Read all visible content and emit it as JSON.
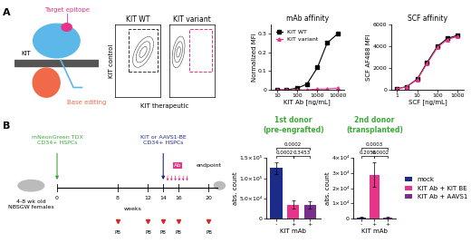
{
  "panel_labels": [
    "A",
    "B"
  ],
  "schematic": {
    "protein": "KIT",
    "epitope": "Target epitope",
    "editing": "Base editing"
  },
  "flow": {
    "xlabel": "KIT therapeutic",
    "ylabel": "KIT control",
    "plots": [
      "KIT WT",
      "KIT variant"
    ]
  },
  "timeline": {
    "start_label": "mNeonGreen TDX\nCD34+ HSPCs",
    "mice": "4-8 wk old\nNBSGW females",
    "axis_label": "weeks",
    "weeks": [
      0,
      8,
      12,
      14,
      16,
      20
    ],
    "start_week": 0,
    "graft_label": "KIT or AAVS1-BE\nCD34+ HSPCs",
    "graft_week": 14,
    "ab_label": "Ab",
    "sample_label": "PB",
    "sample_weeks": [
      8,
      12,
      14,
      16,
      20
    ],
    "end_label": "endpoint"
  },
  "chart_data": [
    {
      "type": "line",
      "title": "mAb affinity",
      "xlabel": "KIT Ab [ng/mL]",
      "ylabel": "Normalized MFI",
      "log": "x",
      "x": [
        10,
        30,
        100,
        300,
        1000,
        3000,
        10000
      ],
      "series": [
        {
          "name": "KIT WT",
          "color": "#000000",
          "marker": "square",
          "line_style": "solid",
          "values": [
            0.0,
            0.0,
            0.01,
            0.03,
            0.12,
            0.25,
            0.3
          ]
        },
        {
          "name": "KIT variant",
          "color": "#e8338a",
          "marker": "triangle",
          "line_style": "solid",
          "values": [
            0.0,
            0.0,
            0.0,
            0.0,
            0.005,
            0.005,
            0.01
          ]
        }
      ],
      "xlim": [
        5,
        20000
      ],
      "xticks": [
        10,
        100,
        1000,
        10000
      ],
      "ylim": [
        0,
        0.35
      ],
      "yticks": [
        0,
        0.1,
        0.2,
        0.3
      ],
      "legend": "upper left"
    },
    {
      "type": "line",
      "title": "SCF affinity",
      "xlabel": "SCF [ng/mL]",
      "ylabel": "SCF AF488 MFI",
      "log": "x",
      "x": [
        1,
        3,
        10,
        30,
        100,
        300,
        1000
      ],
      "series": [
        {
          "color": "#000000",
          "marker": "square",
          "line_style": "solid",
          "values": [
            100,
            300,
            1000,
            2500,
            4000,
            4700,
            5000
          ]
        },
        {
          "color": "#e8338a",
          "marker": "triangle",
          "line_style": "solid",
          "values": [
            100,
            280,
            950,
            2400,
            3900,
            4600,
            4900
          ]
        }
      ],
      "xlim": [
        0.5,
        2000
      ],
      "xticks": [
        1,
        10,
        100,
        1000
      ],
      "ylim": [
        0,
        6000
      ],
      "yticks": [
        0,
        2000,
        4000,
        6000
      ]
    },
    {
      "type": "bar",
      "title": "1st donor\n(pre-engrafted)",
      "ylabel": "abs. count",
      "xlabel": "KIT mAb",
      "categories": [
        "-",
        "+",
        "+"
      ],
      "values": [
        125000,
        35000,
        34000
      ],
      "errors": [
        15000,
        10000,
        10000
      ],
      "colors": [
        "#1c2a8a",
        "#e8338a",
        "#7a2e8c"
      ],
      "ylim": [
        0,
        150000
      ],
      "yticks": [
        0,
        {
          "value": 50000,
          "label": "5.0×10⁴"
        },
        {
          "value": 100000,
          "label": "1.0×10⁵"
        },
        {
          "value": 150000,
          "label": "1.5×10⁵"
        }
      ],
      "comparisons": [
        {
          "pair": [
            0,
            1
          ],
          "label": "0.0002"
        },
        {
          "pair": [
            1,
            2
          ],
          "label": "0.3453"
        },
        {
          "pair": [
            0,
            2
          ],
          "label": "0.0002"
        }
      ]
    },
    {
      "type": "bar",
      "title": "2nd donor\n(transplanted)",
      "ylabel": "abs. count",
      "xlabel": "KIT mAb",
      "categories": [
        "-",
        "+",
        "+"
      ],
      "series": [
        {
          "name": "mock",
          "color": "#1c2a8a",
          "values": [
            1000,
            null,
            null
          ],
          "errors": [
            500,
            null,
            null
          ]
        },
        {
          "name": "KIT Ab + KIT BE",
          "color": "#e8338a",
          "values": [
            null,
            29000,
            null
          ],
          "errors": [
            null,
            8000,
            null
          ]
        },
        {
          "name": "KIT Ab + AAVS1",
          "color": "#7a2e8c",
          "values": [
            null,
            null,
            800
          ],
          "errors": [
            null,
            null,
            400
          ]
        }
      ],
      "ylim": [
        0,
        40000
      ],
      "yticks": [
        0,
        {
          "value": 10000,
          "label": "1×10⁴"
        },
        {
          "value": 20000,
          "label": "2×10⁴"
        },
        {
          "value": 30000,
          "label": "3×10⁴"
        },
        {
          "value": 40000,
          "label": "4×10⁴"
        }
      ],
      "legend": "center left",
      "comparisons": [
        {
          "pair": [
            0,
            1
          ],
          "label": "0.2056"
        },
        {
          "pair": [
            1,
            2
          ],
          "label": "0.0002"
        },
        {
          "pair": [
            0,
            2
          ],
          "label": "0.0003"
        }
      ]
    }
  ]
}
